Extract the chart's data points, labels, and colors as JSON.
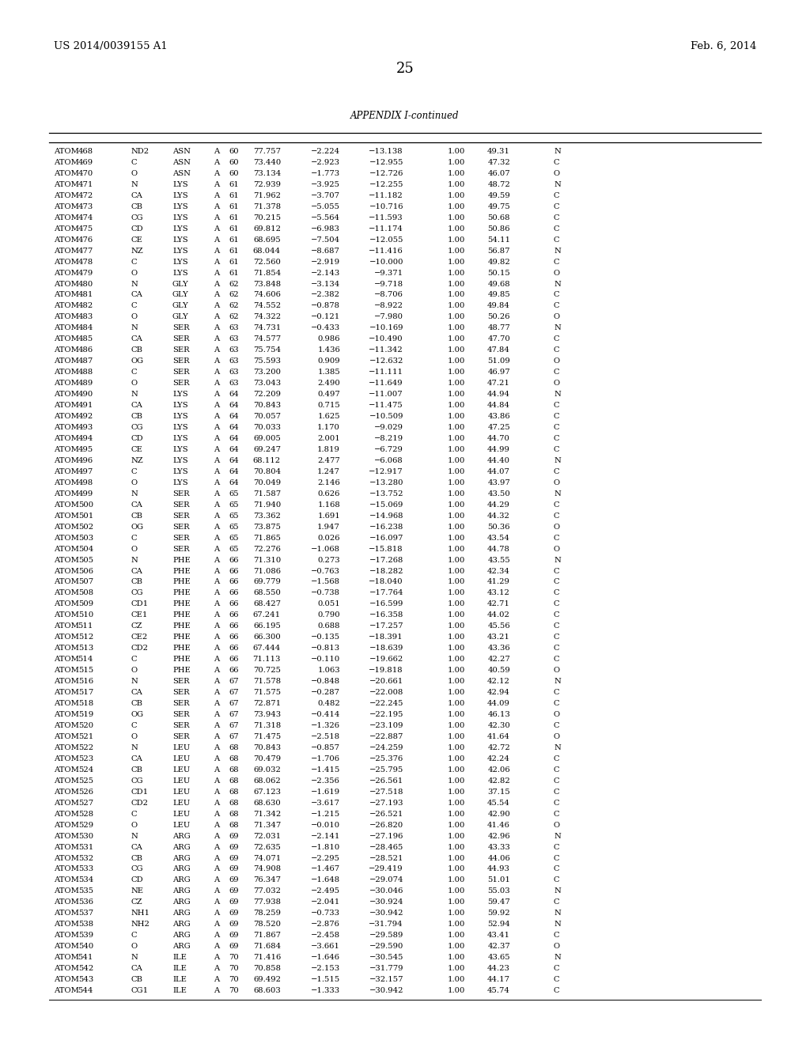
{
  "header_left": "US 2014/0039155 A1",
  "header_right": "Feb. 6, 2014",
  "page_number": "25",
  "table_title": "APPENDIX I-continued",
  "rows": [
    [
      "ATOM",
      "468",
      "ND2",
      "ASN",
      "A",
      "60",
      "77.757",
      "−2.224",
      "−13.138",
      "1.00",
      "49.31",
      "N"
    ],
    [
      "ATOM",
      "469",
      "C",
      "ASN",
      "A",
      "60",
      "73.440",
      "−2.923",
      "−12.955",
      "1.00",
      "47.32",
      "C"
    ],
    [
      "ATOM",
      "470",
      "O",
      "ASN",
      "A",
      "60",
      "73.134",
      "−1.773",
      "−12.726",
      "1.00",
      "46.07",
      "O"
    ],
    [
      "ATOM",
      "471",
      "N",
      "LYS",
      "A",
      "61",
      "72.939",
      "−3.925",
      "−12.255",
      "1.00",
      "48.72",
      "N"
    ],
    [
      "ATOM",
      "472",
      "CA",
      "LYS",
      "A",
      "61",
      "71.962",
      "−3.707",
      "−11.182",
      "1.00",
      "49.59",
      "C"
    ],
    [
      "ATOM",
      "473",
      "CB",
      "LYS",
      "A",
      "61",
      "71.378",
      "−5.055",
      "−10.716",
      "1.00",
      "49.75",
      "C"
    ],
    [
      "ATOM",
      "474",
      "CG",
      "LYS",
      "A",
      "61",
      "70.215",
      "−5.564",
      "−11.593",
      "1.00",
      "50.68",
      "C"
    ],
    [
      "ATOM",
      "475",
      "CD",
      "LYS",
      "A",
      "61",
      "69.812",
      "−6.983",
      "−11.174",
      "1.00",
      "50.86",
      "C"
    ],
    [
      "ATOM",
      "476",
      "CE",
      "LYS",
      "A",
      "61",
      "68.695",
      "−7.504",
      "−12.055",
      "1.00",
      "54.11",
      "C"
    ],
    [
      "ATOM",
      "477",
      "NZ",
      "LYS",
      "A",
      "61",
      "68.044",
      "−8.687",
      "−11.416",
      "1.00",
      "56.87",
      "N"
    ],
    [
      "ATOM",
      "478",
      "C",
      "LYS",
      "A",
      "61",
      "72.560",
      "−2.919",
      "−10.000",
      "1.00",
      "49.82",
      "C"
    ],
    [
      "ATOM",
      "479",
      "O",
      "LYS",
      "A",
      "61",
      "71.854",
      "−2.143",
      "−9.371",
      "1.00",
      "50.15",
      "O"
    ],
    [
      "ATOM",
      "480",
      "N",
      "GLY",
      "A",
      "62",
      "73.848",
      "−3.134",
      "−9.718",
      "1.00",
      "49.68",
      "N"
    ],
    [
      "ATOM",
      "481",
      "CA",
      "GLY",
      "A",
      "62",
      "74.606",
      "−2.382",
      "−8.706",
      "1.00",
      "49.85",
      "C"
    ],
    [
      "ATOM",
      "482",
      "C",
      "GLY",
      "A",
      "62",
      "74.552",
      "−0.878",
      "−8.922",
      "1.00",
      "49.84",
      "C"
    ],
    [
      "ATOM",
      "483",
      "O",
      "GLY",
      "A",
      "62",
      "74.322",
      "−0.121",
      "−7.980",
      "1.00",
      "50.26",
      "O"
    ],
    [
      "ATOM",
      "484",
      "N",
      "SER",
      "A",
      "63",
      "74.731",
      "−0.433",
      "−10.169",
      "1.00",
      "48.77",
      "N"
    ],
    [
      "ATOM",
      "485",
      "CA",
      "SER",
      "A",
      "63",
      "74.577",
      "0.986",
      "−10.490",
      "1.00",
      "47.70",
      "C"
    ],
    [
      "ATOM",
      "486",
      "CB",
      "SER",
      "A",
      "63",
      "75.754",
      "1.436",
      "−11.342",
      "1.00",
      "47.84",
      "C"
    ],
    [
      "ATOM",
      "487",
      "OG",
      "SER",
      "A",
      "63",
      "75.593",
      "0.909",
      "−12.632",
      "1.00",
      "51.09",
      "O"
    ],
    [
      "ATOM",
      "488",
      "C",
      "SER",
      "A",
      "63",
      "73.200",
      "1.385",
      "−11.111",
      "1.00",
      "46.97",
      "C"
    ],
    [
      "ATOM",
      "489",
      "O",
      "SER",
      "A",
      "63",
      "73.043",
      "2.490",
      "−11.649",
      "1.00",
      "47.21",
      "O"
    ],
    [
      "ATOM",
      "490",
      "N",
      "LYS",
      "A",
      "64",
      "72.209",
      "0.497",
      "−11.007",
      "1.00",
      "44.94",
      "N"
    ],
    [
      "ATOM",
      "491",
      "CA",
      "LYS",
      "A",
      "64",
      "70.843",
      "0.715",
      "−11.475",
      "1.00",
      "44.84",
      "C"
    ],
    [
      "ATOM",
      "492",
      "CB",
      "LYS",
      "A",
      "64",
      "70.057",
      "1.625",
      "−10.509",
      "1.00",
      "43.86",
      "C"
    ],
    [
      "ATOM",
      "493",
      "CG",
      "LYS",
      "A",
      "64",
      "70.033",
      "1.170",
      "−9.029",
      "1.00",
      "47.25",
      "C"
    ],
    [
      "ATOM",
      "494",
      "CD",
      "LYS",
      "A",
      "64",
      "69.005",
      "2.001",
      "−8.219",
      "1.00",
      "44.70",
      "C"
    ],
    [
      "ATOM",
      "495",
      "CE",
      "LYS",
      "A",
      "64",
      "69.247",
      "1.819",
      "−6.729",
      "1.00",
      "44.99",
      "C"
    ],
    [
      "ATOM",
      "496",
      "NZ",
      "LYS",
      "A",
      "64",
      "68.112",
      "2.477",
      "−6.068",
      "1.00",
      "44.40",
      "N"
    ],
    [
      "ATOM",
      "497",
      "C",
      "LYS",
      "A",
      "64",
      "70.804",
      "1.247",
      "−12.917",
      "1.00",
      "44.07",
      "C"
    ],
    [
      "ATOM",
      "498",
      "O",
      "LYS",
      "A",
      "64",
      "70.049",
      "2.146",
      "−13.280",
      "1.00",
      "43.97",
      "O"
    ],
    [
      "ATOM",
      "499",
      "N",
      "SER",
      "A",
      "65",
      "71.587",
      "0.626",
      "−13.752",
      "1.00",
      "43.50",
      "N"
    ],
    [
      "ATOM",
      "500",
      "CA",
      "SER",
      "A",
      "65",
      "71.940",
      "1.168",
      "−15.069",
      "1.00",
      "44.29",
      "C"
    ],
    [
      "ATOM",
      "501",
      "CB",
      "SER",
      "A",
      "65",
      "73.362",
      "1.691",
      "−14.968",
      "1.00",
      "44.32",
      "C"
    ],
    [
      "ATOM",
      "502",
      "OG",
      "SER",
      "A",
      "65",
      "73.875",
      "1.947",
      "−16.238",
      "1.00",
      "50.36",
      "O"
    ],
    [
      "ATOM",
      "503",
      "C",
      "SER",
      "A",
      "65",
      "71.865",
      "0.026",
      "−16.097",
      "1.00",
      "43.54",
      "C"
    ],
    [
      "ATOM",
      "504",
      "O",
      "SER",
      "A",
      "65",
      "72.276",
      "−1.068",
      "−15.818",
      "1.00",
      "44.78",
      "O"
    ],
    [
      "ATOM",
      "505",
      "N",
      "PHE",
      "A",
      "66",
      "71.310",
      "0.273",
      "−17.268",
      "1.00",
      "43.55",
      "N"
    ],
    [
      "ATOM",
      "506",
      "CA",
      "PHE",
      "A",
      "66",
      "71.086",
      "−0.763",
      "−18.282",
      "1.00",
      "42.34",
      "C"
    ],
    [
      "ATOM",
      "507",
      "CB",
      "PHE",
      "A",
      "66",
      "69.779",
      "−1.568",
      "−18.040",
      "1.00",
      "41.29",
      "C"
    ],
    [
      "ATOM",
      "508",
      "CG",
      "PHE",
      "A",
      "66",
      "68.550",
      "−0.738",
      "−17.764",
      "1.00",
      "43.12",
      "C"
    ],
    [
      "ATOM",
      "509",
      "CD1",
      "PHE",
      "A",
      "66",
      "68.427",
      "0.051",
      "−16.599",
      "1.00",
      "42.71",
      "C"
    ],
    [
      "ATOM",
      "510",
      "CE1",
      "PHE",
      "A",
      "66",
      "67.241",
      "0.790",
      "−16.358",
      "1.00",
      "44.02",
      "C"
    ],
    [
      "ATOM",
      "511",
      "CZ",
      "PHE",
      "A",
      "66",
      "66.195",
      "0.688",
      "−17.257",
      "1.00",
      "45.56",
      "C"
    ],
    [
      "ATOM",
      "512",
      "CE2",
      "PHE",
      "A",
      "66",
      "66.300",
      "−0.135",
      "−18.391",
      "1.00",
      "43.21",
      "C"
    ],
    [
      "ATOM",
      "513",
      "CD2",
      "PHE",
      "A",
      "66",
      "67.444",
      "−0.813",
      "−18.639",
      "1.00",
      "43.36",
      "C"
    ],
    [
      "ATOM",
      "514",
      "C",
      "PHE",
      "A",
      "66",
      "71.113",
      "−0.110",
      "−19.662",
      "1.00",
      "42.27",
      "C"
    ],
    [
      "ATOM",
      "515",
      "O",
      "PHE",
      "A",
      "66",
      "70.725",
      "1.063",
      "−19.818",
      "1.00",
      "40.59",
      "O"
    ],
    [
      "ATOM",
      "516",
      "N",
      "SER",
      "A",
      "67",
      "71.578",
      "−0.848",
      "−20.661",
      "1.00",
      "42.12",
      "N"
    ],
    [
      "ATOM",
      "517",
      "CA",
      "SER",
      "A",
      "67",
      "71.575",
      "−0.287",
      "−22.008",
      "1.00",
      "42.94",
      "C"
    ],
    [
      "ATOM",
      "518",
      "CB",
      "SER",
      "A",
      "67",
      "72.871",
      "0.482",
      "−22.245",
      "1.00",
      "44.09",
      "C"
    ],
    [
      "ATOM",
      "519",
      "OG",
      "SER",
      "A",
      "67",
      "73.943",
      "−0.414",
      "−22.195",
      "1.00",
      "46.13",
      "O"
    ],
    [
      "ATOM",
      "520",
      "C",
      "SER",
      "A",
      "67",
      "71.318",
      "−1.326",
      "−23.109",
      "1.00",
      "42.30",
      "C"
    ],
    [
      "ATOM",
      "521",
      "O",
      "SER",
      "A",
      "67",
      "71.475",
      "−2.518",
      "−22.887",
      "1.00",
      "41.64",
      "O"
    ],
    [
      "ATOM",
      "522",
      "N",
      "LEU",
      "A",
      "68",
      "70.843",
      "−0.857",
      "−24.259",
      "1.00",
      "42.72",
      "N"
    ],
    [
      "ATOM",
      "523",
      "CA",
      "LEU",
      "A",
      "68",
      "70.479",
      "−1.706",
      "−25.376",
      "1.00",
      "42.24",
      "C"
    ],
    [
      "ATOM",
      "524",
      "CB",
      "LEU",
      "A",
      "68",
      "69.032",
      "−1.415",
      "−25.795",
      "1.00",
      "42.06",
      "C"
    ],
    [
      "ATOM",
      "525",
      "CG",
      "LEU",
      "A",
      "68",
      "68.062",
      "−2.356",
      "−26.561",
      "1.00",
      "42.82",
      "C"
    ],
    [
      "ATOM",
      "526",
      "CD1",
      "LEU",
      "A",
      "68",
      "67.123",
      "−1.619",
      "−27.518",
      "1.00",
      "37.15",
      "C"
    ],
    [
      "ATOM",
      "527",
      "CD2",
      "LEU",
      "A",
      "68",
      "68.630",
      "−3.617",
      "−27.193",
      "1.00",
      "45.54",
      "C"
    ],
    [
      "ATOM",
      "528",
      "C",
      "LEU",
      "A",
      "68",
      "71.342",
      "−1.215",
      "−26.521",
      "1.00",
      "42.90",
      "C"
    ],
    [
      "ATOM",
      "529",
      "O",
      "LEU",
      "A",
      "68",
      "71.347",
      "−0.010",
      "−26.820",
      "1.00",
      "41.46",
      "O"
    ],
    [
      "ATOM",
      "530",
      "N",
      "ARG",
      "A",
      "69",
      "72.031",
      "−2.141",
      "−27.196",
      "1.00",
      "42.96",
      "N"
    ],
    [
      "ATOM",
      "531",
      "CA",
      "ARG",
      "A",
      "69",
      "72.635",
      "−1.810",
      "−28.465",
      "1.00",
      "43.33",
      "C"
    ],
    [
      "ATOM",
      "532",
      "CB",
      "ARG",
      "A",
      "69",
      "74.071",
      "−2.295",
      "−28.521",
      "1.00",
      "44.06",
      "C"
    ],
    [
      "ATOM",
      "533",
      "CG",
      "ARG",
      "A",
      "69",
      "74.908",
      "−1.467",
      "−29.419",
      "1.00",
      "44.93",
      "C"
    ],
    [
      "ATOM",
      "534",
      "CD",
      "ARG",
      "A",
      "69",
      "76.347",
      "−1.648",
      "−29.074",
      "1.00",
      "51.01",
      "C"
    ],
    [
      "ATOM",
      "535",
      "NE",
      "ARG",
      "A",
      "69",
      "77.032",
      "−2.495",
      "−30.046",
      "1.00",
      "55.03",
      "N"
    ],
    [
      "ATOM",
      "536",
      "CZ",
      "ARG",
      "A",
      "69",
      "77.938",
      "−2.041",
      "−30.924",
      "1.00",
      "59.47",
      "C"
    ],
    [
      "ATOM",
      "537",
      "NH1",
      "ARG",
      "A",
      "69",
      "78.259",
      "−0.733",
      "−30.942",
      "1.00",
      "59.92",
      "N"
    ],
    [
      "ATOM",
      "538",
      "NH2",
      "ARG",
      "A",
      "69",
      "78.520",
      "−2.876",
      "−31.794",
      "1.00",
      "52.94",
      "N"
    ],
    [
      "ATOM",
      "539",
      "C",
      "ARG",
      "A",
      "69",
      "71.867",
      "−2.458",
      "−29.589",
      "1.00",
      "43.41",
      "C"
    ],
    [
      "ATOM",
      "540",
      "O",
      "ARG",
      "A",
      "69",
      "71.684",
      "−3.661",
      "−29.590",
      "1.00",
      "42.37",
      "O"
    ],
    [
      "ATOM",
      "541",
      "N",
      "ILE",
      "A",
      "70",
      "71.416",
      "−1.646",
      "−30.545",
      "1.00",
      "43.65",
      "N"
    ],
    [
      "ATOM",
      "542",
      "CA",
      "ILE",
      "A",
      "70",
      "70.858",
      "−2.153",
      "−31.779",
      "1.00",
      "44.23",
      "C"
    ],
    [
      "ATOM",
      "543",
      "CB",
      "ILE",
      "A",
      "70",
      "69.492",
      "−1.515",
      "−32.157",
      "1.00",
      "44.17",
      "C"
    ],
    [
      "ATOM",
      "544",
      "CG1",
      "ILE",
      "A",
      "70",
      "68.603",
      "−1.333",
      "−30.942",
      "1.00",
      "45.74",
      "C"
    ]
  ],
  "bg_color": "#ffffff",
  "text_color": "#000000",
  "font_size": 7.2,
  "header_font_size": 9.5,
  "title_font_size": 8.5,
  "page_num_font_size": 13
}
